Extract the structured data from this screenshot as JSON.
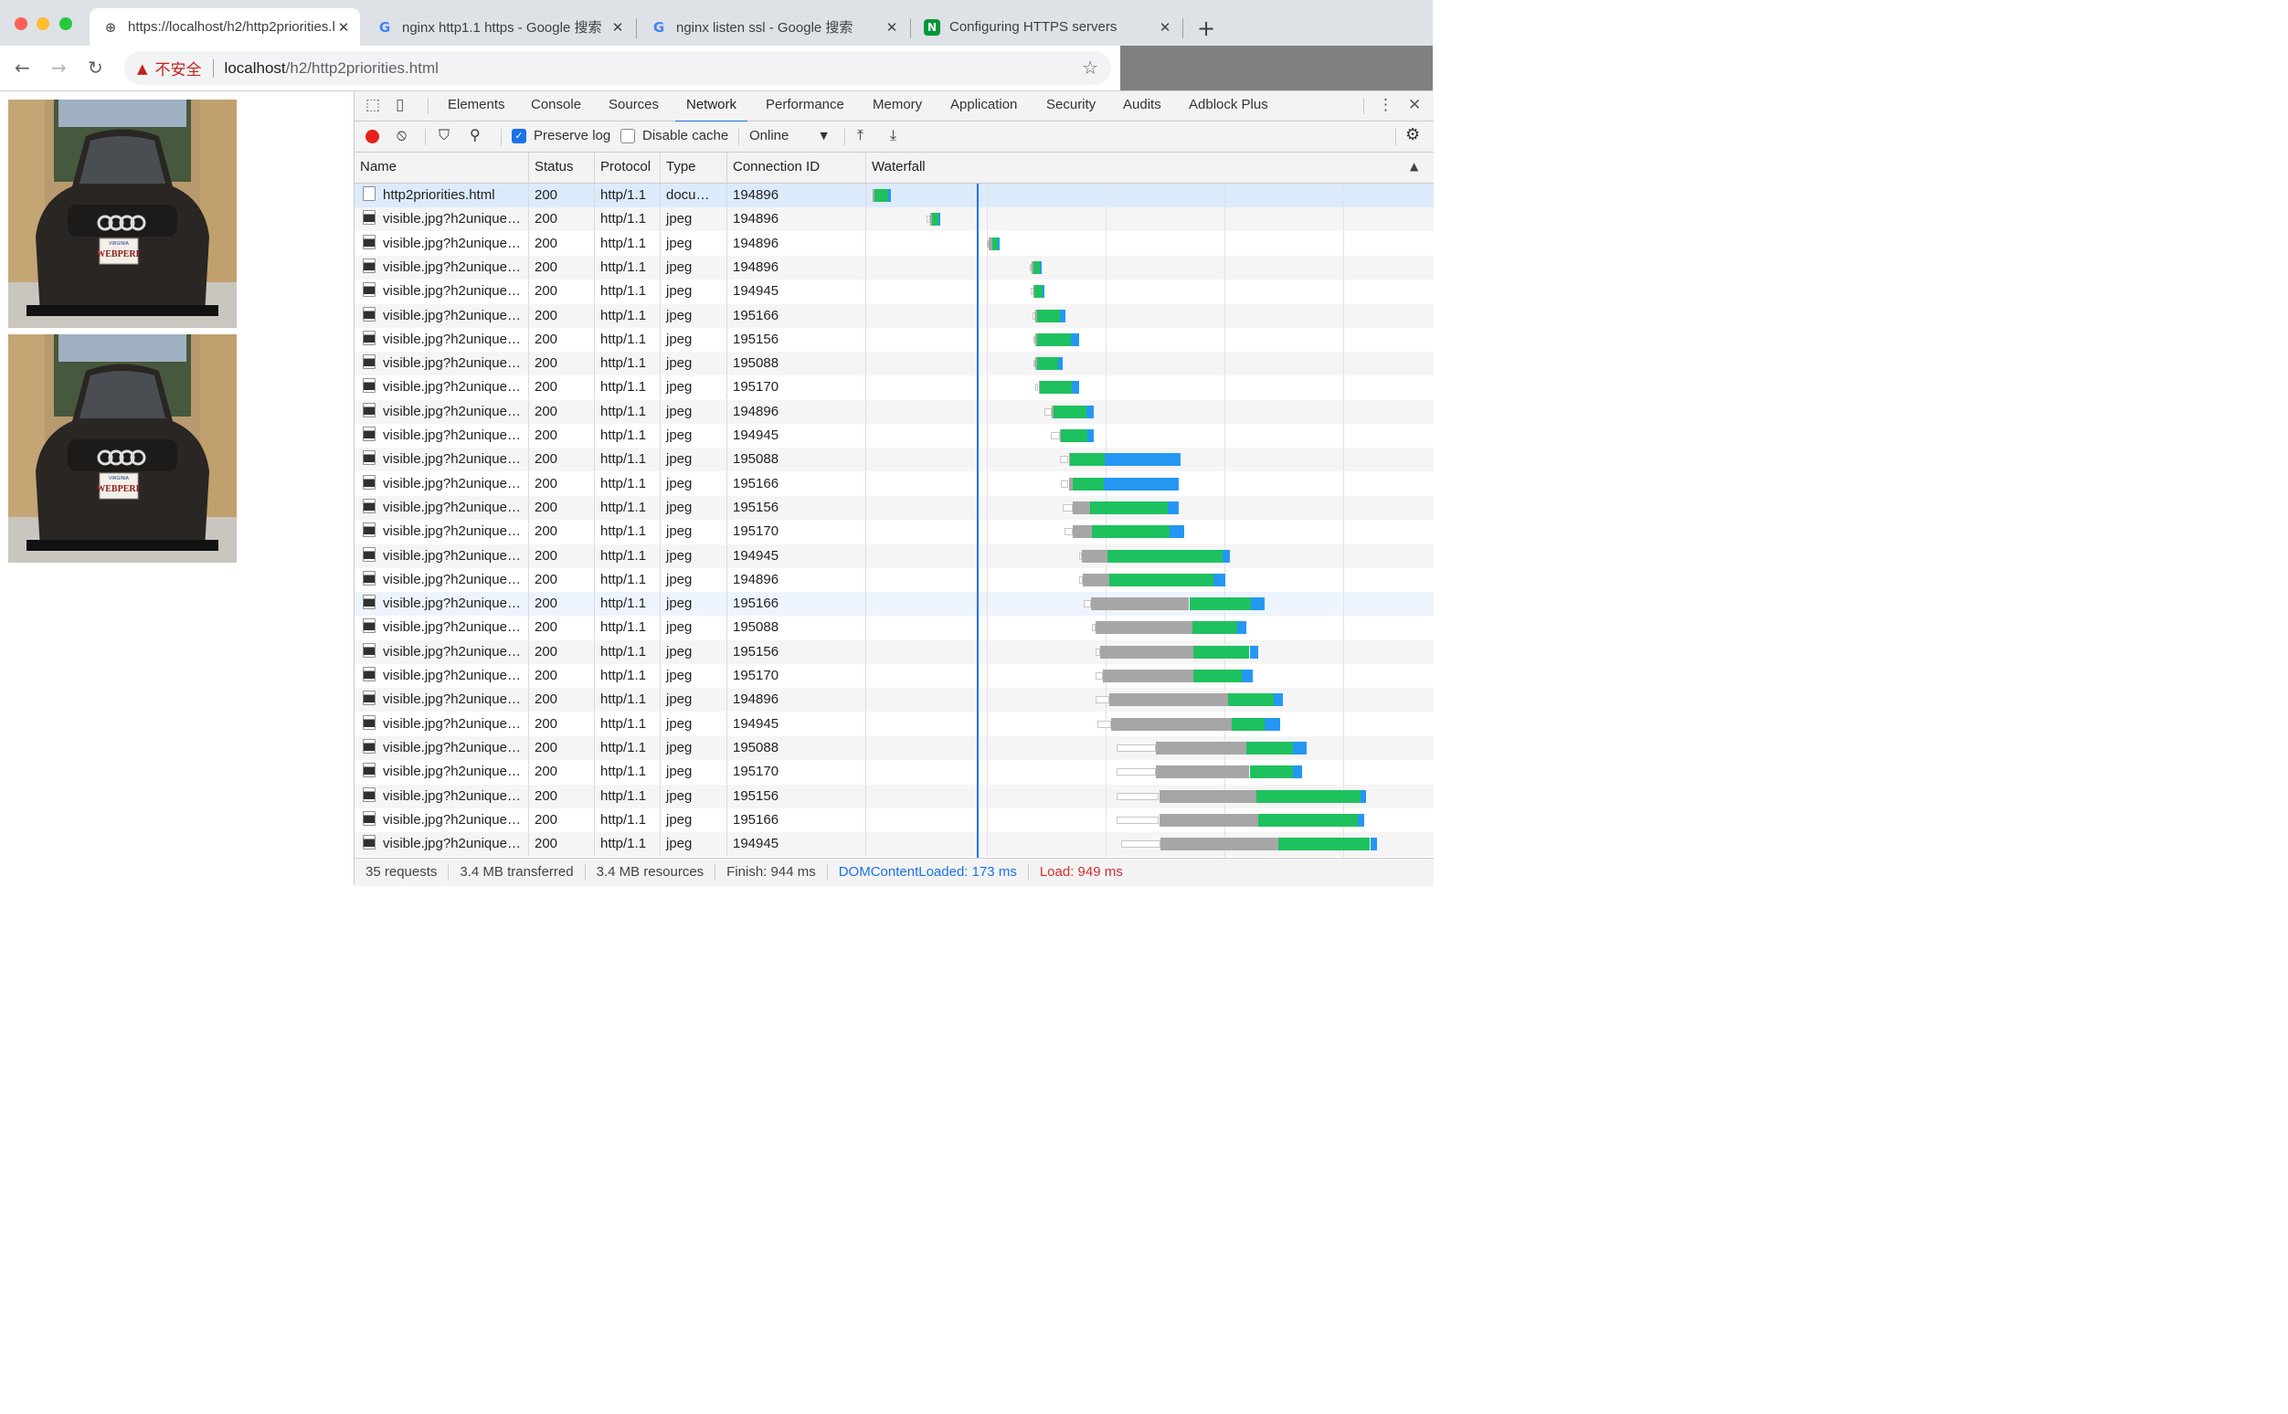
{
  "browser": {
    "tabs": [
      {
        "title": "https://localhost/h2/http2priorities.html",
        "icon": "globe-icon"
      },
      {
        "title": "nginx http1.1 https - Google 搜索",
        "icon": "google-icon"
      },
      {
        "title": "nginx listen ssl - Google 搜索",
        "icon": "google-icon"
      },
      {
        "title": "Configuring HTTPS servers",
        "icon": "nginx-icon"
      }
    ],
    "security_label": "不安全",
    "url_host": "localhost",
    "url_path": "/h2/http2priorities.html",
    "colors": {
      "tabstrip": "#dee1e6",
      "insecure": "#c5221f",
      "nginx": "#009639"
    }
  },
  "page": {
    "images": [
      {
        "plate_state": "VIRGINIA",
        "plate": "WEBPERF"
      },
      {
        "plate_state": "VIRGINIA",
        "plate": "WEBPERF"
      }
    ]
  },
  "devtools": {
    "panel_tabs": [
      "Elements",
      "Console",
      "Sources",
      "Network",
      "Performance",
      "Memory",
      "Application",
      "Security",
      "Audits",
      "Adblock Plus"
    ],
    "active_tab": "Network",
    "filter": {
      "preserve_log_label": "Preserve log",
      "preserve_log_checked": true,
      "disable_cache_label": "Disable cache",
      "disable_cache_checked": false,
      "throttling": "Online"
    },
    "columns": [
      "Name",
      "Status",
      "Protocol",
      "Type",
      "Connection ID",
      "Waterfall"
    ],
    "rows": [
      {
        "name": "http2priorities.html",
        "status": "200",
        "protocol": "http/1.1",
        "type": "docu…",
        "conn": "194896",
        "doc": true
      },
      {
        "name": "visible.jpg?h2unique…",
        "status": "200",
        "protocol": "http/1.1",
        "type": "jpeg",
        "conn": "194896"
      },
      {
        "name": "visible.jpg?h2unique…",
        "status": "200",
        "protocol": "http/1.1",
        "type": "jpeg",
        "conn": "194896"
      },
      {
        "name": "visible.jpg?h2unique…",
        "status": "200",
        "protocol": "http/1.1",
        "type": "jpeg",
        "conn": "194896"
      },
      {
        "name": "visible.jpg?h2unique…",
        "status": "200",
        "protocol": "http/1.1",
        "type": "jpeg",
        "conn": "194945"
      },
      {
        "name": "visible.jpg?h2unique…",
        "status": "200",
        "protocol": "http/1.1",
        "type": "jpeg",
        "conn": "195166"
      },
      {
        "name": "visible.jpg?h2unique…",
        "status": "200",
        "protocol": "http/1.1",
        "type": "jpeg",
        "conn": "195156"
      },
      {
        "name": "visible.jpg?h2unique…",
        "status": "200",
        "protocol": "http/1.1",
        "type": "jpeg",
        "conn": "195088"
      },
      {
        "name": "visible.jpg?h2unique…",
        "status": "200",
        "protocol": "http/1.1",
        "type": "jpeg",
        "conn": "195170"
      },
      {
        "name": "visible.jpg?h2unique…",
        "status": "200",
        "protocol": "http/1.1",
        "type": "jpeg",
        "conn": "194896"
      },
      {
        "name": "visible.jpg?h2unique…",
        "status": "200",
        "protocol": "http/1.1",
        "type": "jpeg",
        "conn": "194945"
      },
      {
        "name": "visible.jpg?h2unique…",
        "status": "200",
        "protocol": "http/1.1",
        "type": "jpeg",
        "conn": "195088"
      },
      {
        "name": "visible.jpg?h2unique…",
        "status": "200",
        "protocol": "http/1.1",
        "type": "jpeg",
        "conn": "195166"
      },
      {
        "name": "visible.jpg?h2unique…",
        "status": "200",
        "protocol": "http/1.1",
        "type": "jpeg",
        "conn": "195156"
      },
      {
        "name": "visible.jpg?h2unique…",
        "status": "200",
        "protocol": "http/1.1",
        "type": "jpeg",
        "conn": "195170"
      },
      {
        "name": "visible.jpg?h2unique…",
        "status": "200",
        "protocol": "http/1.1",
        "type": "jpeg",
        "conn": "194945"
      },
      {
        "name": "visible.jpg?h2unique…",
        "status": "200",
        "protocol": "http/1.1",
        "type": "jpeg",
        "conn": "194896"
      },
      {
        "name": "visible.jpg?h2unique…",
        "status": "200",
        "protocol": "http/1.1",
        "type": "jpeg",
        "conn": "195166"
      },
      {
        "name": "visible.jpg?h2unique…",
        "status": "200",
        "protocol": "http/1.1",
        "type": "jpeg",
        "conn": "195088"
      },
      {
        "name": "visible.jpg?h2unique…",
        "status": "200",
        "protocol": "http/1.1",
        "type": "jpeg",
        "conn": "195156"
      },
      {
        "name": "visible.jpg?h2unique…",
        "status": "200",
        "protocol": "http/1.1",
        "type": "jpeg",
        "conn": "195170"
      },
      {
        "name": "visible.jpg?h2unique…",
        "status": "200",
        "protocol": "http/1.1",
        "type": "jpeg",
        "conn": "194896"
      },
      {
        "name": "visible.jpg?h2unique…",
        "status": "200",
        "protocol": "http/1.1",
        "type": "jpeg",
        "conn": "194945"
      },
      {
        "name": "visible.jpg?h2unique…",
        "status": "200",
        "protocol": "http/1.1",
        "type": "jpeg",
        "conn": "195088"
      },
      {
        "name": "visible.jpg?h2unique…",
        "status": "200",
        "protocol": "http/1.1",
        "type": "jpeg",
        "conn": "195170"
      },
      {
        "name": "visible.jpg?h2unique…",
        "status": "200",
        "protocol": "http/1.1",
        "type": "jpeg",
        "conn": "195156"
      },
      {
        "name": "visible.jpg?h2unique…",
        "status": "200",
        "protocol": "http/1.1",
        "type": "jpeg",
        "conn": "195166"
      },
      {
        "name": "visible.jpg?h2unique…",
        "status": "200",
        "protocol": "http/1.1",
        "type": "jpeg",
        "conn": "194945"
      }
    ],
    "waterfall": {
      "domcontentloaded_ms": 173,
      "timings_ms": [
        [
          0,
          0,
          3,
          31
        ],
        [
          90,
          95,
          98,
          112
        ],
        [
          190,
          193,
          198,
          210
        ],
        [
          260,
          264,
          266,
          280
        ],
        [
          262,
          266,
          268,
          285
        ],
        [
          265,
          270,
          272,
          320
        ],
        [
          266,
          270,
          272,
          342
        ],
        [
          266,
          270,
          272,
          315
        ],
        [
          270,
          275,
          278,
          342
        ],
        [
          285,
          297,
          300,
          366
        ],
        [
          295,
          310,
          312,
          366
        ],
        [
          310,
          325,
          328,
          385,
          510
        ],
        [
          312,
          325,
          332,
          384,
          508
        ],
        [
          315,
          332,
          360,
          490,
          507
        ],
        [
          318,
          332,
          363,
          492,
          517
        ],
        [
          343,
          347,
          390,
          580,
          592
        ],
        [
          343,
          348,
          392,
          565,
          585
        ],
        [
          350,
          362,
          525,
          628,
          650
        ],
        [
          363,
          370,
          530,
          605,
          620
        ],
        [
          370,
          377,
          532,
          625,
          640
        ],
        [
          370,
          382,
          532,
          612,
          630
        ],
        [
          370,
          393,
          590,
          665,
          680
        ],
        [
          373,
          395,
          595,
          650,
          675
        ],
        [
          405,
          470,
          620,
          697,
          720
        ],
        [
          405,
          470,
          625,
          697,
          712
        ],
        [
          405,
          475,
          637,
          809,
          818
        ],
        [
          405,
          475,
          639,
          805,
          815
        ],
        [
          412,
          477,
          672,
          825,
          837
        ]
      ]
    },
    "status": {
      "requests": "35 requests",
      "transferred": "3.4 MB transferred",
      "resources": "3.4 MB resources",
      "finish": "Finish: 944 ms",
      "domcontentloaded": "DOMContentLoaded: 173 ms",
      "load": "Load: 949 ms"
    },
    "colors": {
      "accent": "#1a73e8",
      "receiving_green": "#1ec15e",
      "download_blue": "#2497f3",
      "queue_gray": "#a6a6a6",
      "record_red": "#e8201a",
      "load_red": "#d32f2f"
    }
  }
}
